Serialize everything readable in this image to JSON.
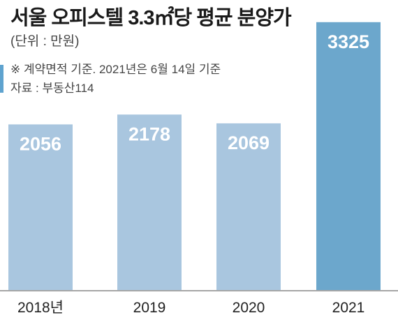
{
  "title": "서울 오피스텔 3.3㎡당 평균 분양가",
  "unit_label": "(단위 : 만원)",
  "notes": [
    "※ 계약면적 기준. 2021년은 6월 14일 기준",
    "자료 : 부동산114"
  ],
  "colors": {
    "bar": "#a9c6df",
    "bar_highlight": "#6ca7cc",
    "accent": "#5fa3cf",
    "axis": "#888888",
    "label": "#ffffff",
    "tick": "#222222"
  },
  "chart_data": {
    "type": "bar",
    "categories": [
      "2018년",
      "2019",
      "2020",
      "2021"
    ],
    "values": [
      2056,
      2178,
      2069,
      3325
    ],
    "data_labels": [
      "2056",
      "2178",
      "2069",
      "3325"
    ],
    "highlight_index": 3,
    "ylim": [
      0,
      3600
    ],
    "grid": false,
    "legend": "none"
  }
}
